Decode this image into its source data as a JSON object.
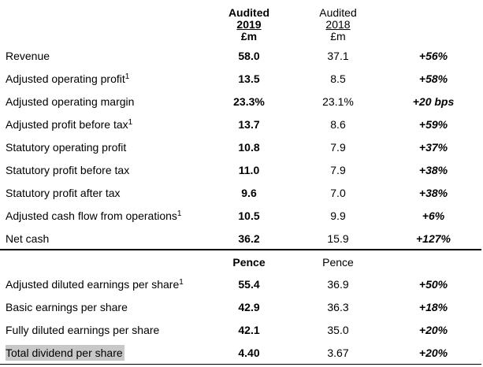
{
  "header": {
    "col_2019": {
      "line1": "Audited",
      "line2": "2019",
      "line3": "£m"
    },
    "col_2018": {
      "line1": "Audited",
      "line2": "2018",
      "line3": "£m"
    }
  },
  "rows": [
    {
      "label": "Revenue",
      "sup": "",
      "v2019": "58.0",
      "v2018": "37.1",
      "change": "+56%"
    },
    {
      "label": "Adjusted operating profit",
      "sup": "1",
      "v2019": "13.5",
      "v2018": "8.5",
      "change": "+58%"
    },
    {
      "label": "Adjusted operating margin",
      "sup": "",
      "v2019": "23.3%",
      "v2018": "23.1%",
      "change": "+20 bps"
    },
    {
      "label": "Adjusted profit before tax",
      "sup": "1",
      "v2019": "13.7",
      "v2018": "8.6",
      "change": "+59%"
    },
    {
      "label": "Statutory operating profit",
      "sup": "",
      "v2019": "10.8",
      "v2018": "7.9",
      "change": "+37%"
    },
    {
      "label": "Statutory profit before tax",
      "sup": "",
      "v2019": "11.0",
      "v2018": "7.9",
      "change": "+38%"
    },
    {
      "label": "Statutory profit after tax",
      "sup": "",
      "v2019": "9.6",
      "v2018": "7.0",
      "change": "+38%"
    },
    {
      "label": "Adjusted cash flow from operations",
      "sup": "1",
      "v2019": "10.5",
      "v2018": "9.9",
      "change": "+6%"
    },
    {
      "label": "Net cash",
      "sup": "",
      "v2019": "36.2",
      "v2018": "15.9",
      "change": "+127%"
    }
  ],
  "subheader": {
    "col_2019": "Pence",
    "col_2018": "Pence"
  },
  "pence_rows": [
    {
      "label": "Adjusted diluted earnings per share",
      "sup": "1",
      "v2019": "55.4",
      "v2018": "36.9",
      "change": "+50%"
    },
    {
      "label": "Basic earnings per share",
      "sup": "",
      "v2019": "42.9",
      "v2018": "36.3",
      "change": "+18%"
    },
    {
      "label": "Fully diluted earnings per share",
      "sup": "",
      "v2019": "42.1",
      "v2018": "35.0",
      "change": "+20%"
    },
    {
      "label": "Total dividend per share",
      "sup": "",
      "v2019": "4.40",
      "v2018": "3.67",
      "change": "+20%"
    }
  ]
}
